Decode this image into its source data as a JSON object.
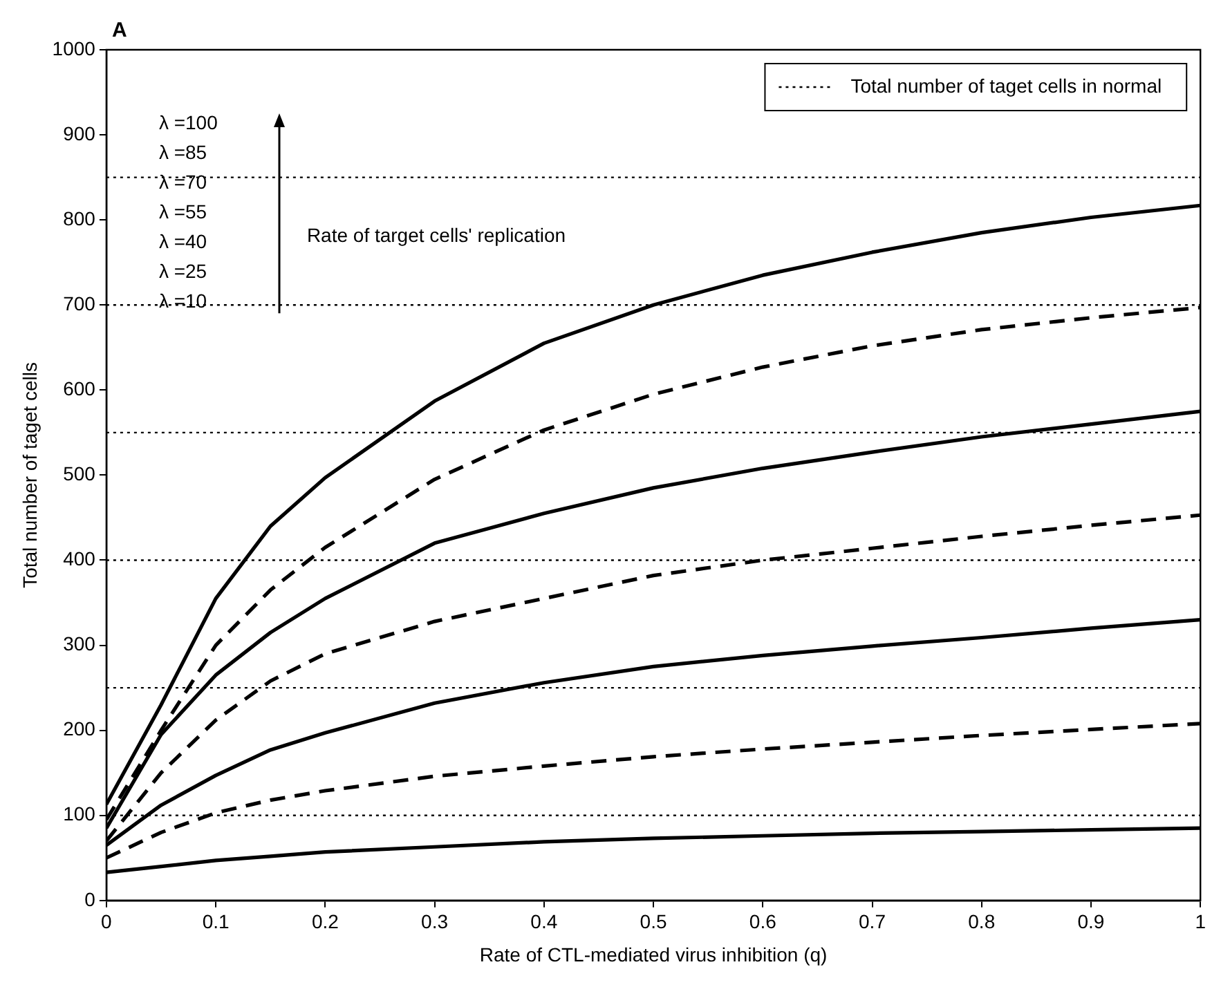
{
  "chart_data": {
    "type": "line",
    "title": "A",
    "xlabel": "Rate of CTL-mediated virus inhibition (q)",
    "ylabel": "Total number of taget cells",
    "x": [
      0,
      0.05,
      0.1,
      0.15,
      0.2,
      0.3,
      0.4,
      0.5,
      0.6,
      0.7,
      0.8,
      0.9,
      1
    ],
    "series": [
      {
        "color": "#000000",
        "line_style": "solid",
        "values": [
          113,
          230,
          355,
          440,
          497,
          587,
          655,
          700,
          735,
          762,
          785,
          803,
          817
        ]
      },
      {
        "color": "#000000",
        "line_style": "dashed",
        "values": [
          95,
          200,
          300,
          365,
          415,
          495,
          553,
          595,
          627,
          652,
          671,
          685,
          697
        ]
      },
      {
        "color": "#000000",
        "line_style": "solid",
        "values": [
          85,
          195,
          265,
          315,
          355,
          420,
          455,
          485,
          508,
          527,
          545,
          560,
          575
        ]
      },
      {
        "color": "#000000",
        "line_style": "dashed",
        "values": [
          70,
          150,
          212,
          258,
          290,
          328,
          355,
          382,
          400,
          414,
          428,
          441,
          453
        ]
      },
      {
        "color": "#000000",
        "line_style": "solid",
        "values": [
          65,
          112,
          147,
          177,
          197,
          232,
          256,
          275,
          288,
          299,
          309,
          320,
          330
        ]
      },
      {
        "color": "#000000",
        "line_style": "dashed",
        "values": [
          50,
          80,
          103,
          118,
          129,
          146,
          158,
          169,
          178,
          186,
          194,
          201,
          208
        ]
      },
      {
        "color": "#000000",
        "line_style": "solid",
        "values": [
          33,
          40,
          47,
          52,
          57,
          63,
          69,
          73,
          76,
          79,
          81,
          83,
          85
        ]
      }
    ],
    "ref_lines": [
      {
        "axis": "y",
        "value": 100,
        "label": "Total number of taget cells in normal",
        "color": "#000000",
        "line_style": "dotted"
      },
      {
        "axis": "y",
        "value": 250,
        "color": "#000000",
        "line_style": "dotted"
      },
      {
        "axis": "y",
        "value": 400,
        "color": "#000000",
        "line_style": "dotted"
      },
      {
        "axis": "y",
        "value": 550,
        "color": "#000000",
        "line_style": "dotted"
      },
      {
        "axis": "y",
        "value": 700,
        "color": "#000000",
        "line_style": "dotted"
      },
      {
        "axis": "y",
        "value": 850,
        "color": "#000000",
        "line_style": "dotted"
      }
    ],
    "annotations": [
      "λ =100",
      "λ =85",
      "λ =70",
      "λ =55",
      "λ =40",
      "λ =25",
      "λ =10",
      "Rate of target cells' replication"
    ],
    "xlim": [
      0,
      1
    ],
    "xticks": [
      0,
      0.1,
      0.2,
      0.3,
      0.4,
      0.5,
      0.6,
      0.7,
      0.8,
      0.9,
      1
    ],
    "ylim": [
      0,
      1000
    ],
    "yticks": [
      0,
      100,
      200,
      300,
      400,
      500,
      600,
      700,
      800,
      900,
      1000
    ],
    "grid": false,
    "legend": "top right",
    "marker": "none"
  }
}
